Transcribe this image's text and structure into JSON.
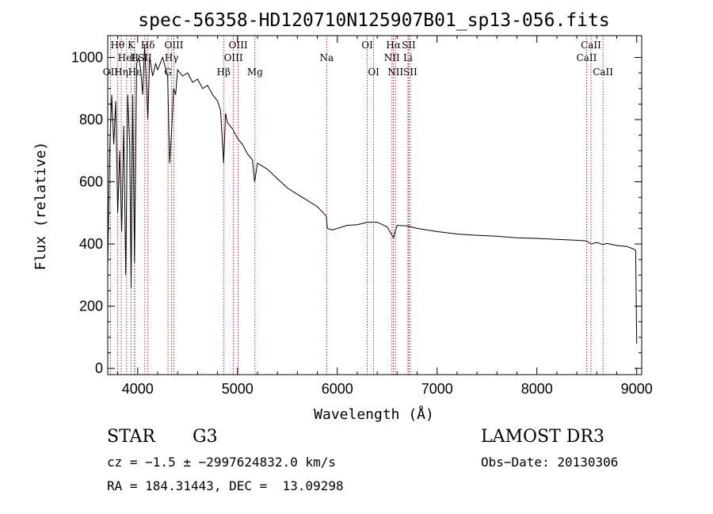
{
  "chart_data": {
    "type": "line",
    "title": "spec-56358-HD120710N125907B01_sp13-056.fits",
    "xlabel": "Wavelength (Å)",
    "ylabel": "Flux (relative)",
    "xlim": [
      3700,
      9050
    ],
    "ylim": [
      -20,
      1070
    ],
    "xticks": [
      4000,
      5000,
      6000,
      7000,
      8000,
      9000
    ],
    "yticks": [
      0,
      200,
      400,
      600,
      800,
      1000
    ],
    "grid": false,
    "series": [
      {
        "x": [
          3700,
          3720,
          3740,
          3760,
          3780,
          3800,
          3820,
          3840,
          3860,
          3880,
          3900,
          3920,
          3934,
          3950,
          3968,
          3990,
          4010,
          4030,
          4050,
          4070,
          4090,
          4102,
          4120,
          4150,
          4180,
          4200,
          4250,
          4300,
          4320,
          4340,
          4360,
          4380,
          4400,
          4450,
          4500,
          4550,
          4600,
          4650,
          4700,
          4750,
          4800,
          4830,
          4861,
          4880,
          4900,
          4950,
          5000,
          5050,
          5100,
          5150,
          5172,
          5200,
          5300,
          5400,
          5500,
          5600,
          5700,
          5800,
          5890,
          5900,
          5950,
          6000,
          6100,
          6200,
          6300,
          6400,
          6500,
          6563,
          6600,
          6700,
          6800,
          7000,
          7200,
          7400,
          7600,
          7800,
          8000,
          8200,
          8400,
          8500,
          8542,
          8600,
          8662,
          8700,
          8800,
          8900,
          8960,
          8990,
          9000
        ],
        "y": [
          330,
          700,
          880,
          720,
          860,
          500,
          700,
          440,
          780,
          300,
          880,
          720,
          260,
          880,
          340,
          980,
          1000,
          960,
          880,
          1040,
          900,
          800,
          1000,
          940,
          980,
          960,
          1000,
          940,
          660,
          760,
          900,
          880,
          960,
          940,
          950,
          920,
          930,
          900,
          910,
          880,
          860,
          830,
          660,
          820,
          790,
          770,
          740,
          720,
          690,
          670,
          600,
          660,
          640,
          610,
          580,
          560,
          540,
          520,
          490,
          450,
          445,
          450,
          460,
          462,
          470,
          470,
          455,
          420,
          460,
          458,
          450,
          440,
          432,
          428,
          425,
          420,
          418,
          415,
          412,
          410,
          400,
          405,
          398,
          402,
          395,
          392,
          385,
          380,
          80
        ]
      }
    ],
    "lines": [
      {
        "name": "Hθ",
        "x": 3798,
        "row": 0
      },
      {
        "name": "OII",
        "x": 3727,
        "row": 2
      },
      {
        "name": "Hη",
        "x": 3835,
        "row": 2
      },
      {
        "name": "HeI",
        "x": 3889,
        "row": 1
      },
      {
        "name": "K",
        "x": 3934,
        "row": 0
      },
      {
        "name": "H",
        "x": 3968,
        "row": 1
      },
      {
        "name": "Hε",
        "x": 3970,
        "row": 2
      },
      {
        "name": "SII",
        "x": 4072,
        "row": 1
      },
      {
        "name": "Hδ",
        "x": 4102,
        "row": 0
      },
      {
        "name": "OIII",
        "x": 4363,
        "row": 0
      },
      {
        "name": "Hγ",
        "x": 4340,
        "row": 1
      },
      {
        "name": "G",
        "x": 4304,
        "row": 2
      },
      {
        "name": "Hβ",
        "x": 4861,
        "row": 2
      },
      {
        "name": "OIII",
        "x": 4959,
        "row": 1
      },
      {
        "name": "OIII",
        "x": 5007,
        "row": 0
      },
      {
        "name": "Mg",
        "x": 5175,
        "row": 2
      },
      {
        "name": "Na",
        "x": 5893,
        "row": 1
      },
      {
        "name": "OI",
        "x": 6300,
        "row": 0
      },
      {
        "name": "OI",
        "x": 6364,
        "row": 2
      },
      {
        "name": "NII",
        "x": 6548,
        "row": 1
      },
      {
        "name": "Hα",
        "x": 6563,
        "row": 0
      },
      {
        "name": "NII",
        "x": 6583,
        "row": 2
      },
      {
        "name": "Li",
        "x": 6708,
        "row": 1
      },
      {
        "name": "SII",
        "x": 6716,
        "row": 0
      },
      {
        "name": "SII",
        "x": 6731,
        "row": 2
      },
      {
        "name": "CaII",
        "x": 8498,
        "row": 1
      },
      {
        "name": "CaII",
        "x": 8542,
        "row": 0
      },
      {
        "name": "CaII",
        "x": 8662,
        "row": 2
      }
    ]
  },
  "info": {
    "object_class": "STAR",
    "subclass": "G3",
    "survey": "LAMOST DR3",
    "cz": "cz = −1.5 ± −2997624832.0 km/s",
    "obs_date": "Obs−Date: 20130306",
    "coords": "RA = 184.31443, DEC =  13.09298"
  },
  "colors": {
    "axis": "#000000",
    "spectrum": "#000000",
    "line_marker": "#a00000",
    "background": "#ffffff"
  }
}
